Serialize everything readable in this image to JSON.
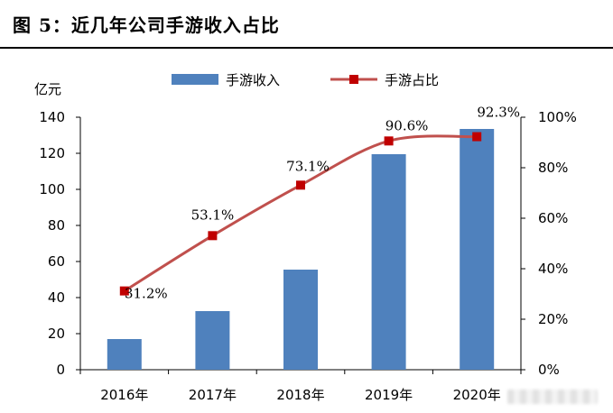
{
  "figure_title": "图 5：近几年公司手游收入占比",
  "chart_data": {
    "type": "bar+line",
    "categories": [
      "2016年",
      "2017年",
      "2018年",
      "2019年",
      "2020年"
    ],
    "series": [
      {
        "name": "手游收入",
        "type": "bar",
        "axis": "left",
        "values": [
          17,
          32.5,
          55.5,
          119.5,
          133.5
        ],
        "color": "#4F81BD"
      },
      {
        "name": "手游占比",
        "type": "line",
        "axis": "right",
        "values": [
          31.2,
          53.1,
          73.1,
          90.6,
          92.3
        ],
        "labels": [
          "31.2%",
          "53.1%",
          "73.1%",
          "90.6%",
          "92.3%"
        ],
        "color": "#C0504D",
        "marker_color": "#C00000"
      }
    ],
    "y_left": {
      "unit_label": "亿元",
      "ticks": [
        0,
        20,
        40,
        60,
        80,
        100,
        120,
        140
      ],
      "range": [
        0,
        140
      ]
    },
    "y_right": {
      "ticks": [
        0,
        20,
        40,
        60,
        80,
        100
      ],
      "tick_labels": [
        "0%",
        "20%",
        "40%",
        "60%",
        "80%",
        "100%"
      ],
      "range": [
        0,
        100
      ]
    },
    "legend": {
      "position": "top-center",
      "entries": [
        "手游收入",
        "手游占比"
      ]
    },
    "grid": false
  }
}
